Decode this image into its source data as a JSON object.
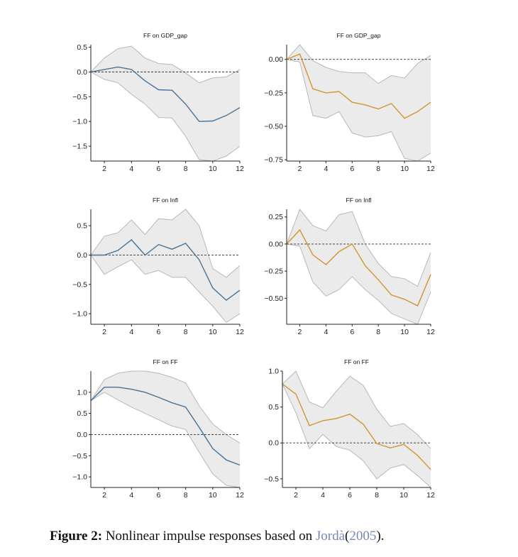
{
  "caption": {
    "label": "Figure 2:",
    "text": "Nonlinear impulse responses based on",
    "author": "Jordà",
    "open_paren": "(",
    "year": "2005",
    "close": ")."
  },
  "colors": {
    "blue": "#4a7396",
    "orange": "#d1962f",
    "band": "#ebebeb",
    "band_edge": "#b8b8b8",
    "axis": "#222222"
  },
  "chart_data": [
    {
      "id": "p1",
      "type": "line",
      "title": "FF on GDP_gap",
      "color": "blue",
      "xlim": [
        1,
        12
      ],
      "ylim": [
        -1.8,
        0.55
      ],
      "xticks": [
        2,
        4,
        6,
        8,
        10,
        12
      ],
      "xtick_labels": [
        "2",
        "4",
        "6",
        "8",
        "10",
        "12"
      ],
      "yticks": [
        0.5,
        0.0,
        -0.5,
        -1.0,
        -1.5
      ],
      "ytick_labels": [
        "0.5",
        "0.0",
        "−0.5",
        "−1.0",
        "−1.5"
      ],
      "x": [
        1,
        2,
        3,
        4,
        5,
        6,
        7,
        8,
        9,
        10,
        11,
        12
      ],
      "irf": [
        0.0,
        0.05,
        0.1,
        0.05,
        -0.18,
        -0.36,
        -0.37,
        -0.65,
        -1.0,
        -0.99,
        -0.88,
        -0.72
      ],
      "lower": [
        0.0,
        -0.15,
        -0.22,
        -0.45,
        -0.65,
        -0.92,
        -0.93,
        -1.3,
        -1.77,
        -1.9,
        -1.7,
        -1.5
      ],
      "upper": [
        0.0,
        0.28,
        0.47,
        0.52,
        0.28,
        0.17,
        0.15,
        -0.02,
        -0.22,
        -0.12,
        -0.1,
        0.05
      ]
    },
    {
      "id": "p2",
      "type": "line",
      "title": "FF on GDP_gap",
      "color": "orange",
      "xlim": [
        1,
        12
      ],
      "ylim": [
        -0.76,
        0.11
      ],
      "xticks": [
        2,
        4,
        6,
        8,
        10,
        12
      ],
      "xtick_labels": [
        "2",
        "4",
        "6",
        "8",
        "10",
        "12"
      ],
      "yticks": [
        0.0,
        -0.25,
        -0.5,
        -0.75
      ],
      "ytick_labels": [
        "0.00",
        "−0.25",
        "−0.50",
        "−0.75"
      ],
      "x": [
        1,
        2,
        3,
        4,
        5,
        6,
        7,
        8,
        9,
        10,
        11,
        12
      ],
      "irf": [
        0.0,
        0.04,
        -0.22,
        -0.25,
        -0.24,
        -0.32,
        -0.34,
        -0.37,
        -0.33,
        -0.44,
        -0.39,
        -0.32
      ],
      "lower": [
        0.0,
        -0.02,
        -0.42,
        -0.44,
        -0.39,
        -0.55,
        -0.58,
        -0.57,
        -0.54,
        -0.74,
        -0.77,
        -0.7
      ],
      "upper": [
        0.0,
        0.11,
        -0.01,
        -0.06,
        -0.09,
        -0.1,
        -0.1,
        -0.18,
        -0.12,
        -0.14,
        -0.03,
        0.03
      ]
    },
    {
      "id": "p3",
      "type": "line",
      "title": "FF on Infl",
      "color": "blue",
      "xlim": [
        1,
        12
      ],
      "ylim": [
        -1.18,
        0.78
      ],
      "xticks": [
        2,
        4,
        6,
        8,
        10,
        12
      ],
      "xtick_labels": [
        "2",
        "4",
        "6",
        "8",
        "10",
        "12"
      ],
      "yticks": [
        0.5,
        0.0,
        -0.5,
        -1.0
      ],
      "ytick_labels": [
        "0.5",
        "0.0",
        "−0.5",
        "−1.0"
      ],
      "x": [
        1,
        2,
        3,
        4,
        5,
        6,
        7,
        8,
        9,
        10,
        11,
        12
      ],
      "irf": [
        0.0,
        0.0,
        0.08,
        0.26,
        0.0,
        0.18,
        0.1,
        0.2,
        -0.08,
        -0.56,
        -0.77,
        -0.6
      ],
      "lower": [
        0.0,
        -0.33,
        -0.2,
        -0.08,
        -0.33,
        -0.26,
        -0.38,
        -0.38,
        -0.63,
        -0.87,
        -1.15,
        -1.0
      ],
      "upper": [
        0.0,
        0.32,
        0.38,
        0.6,
        0.35,
        0.62,
        0.6,
        0.78,
        0.5,
        -0.23,
        -0.38,
        -0.18
      ]
    },
    {
      "id": "p4",
      "type": "line",
      "title": "FF on Infl",
      "color": "orange",
      "xlim": [
        1,
        12
      ],
      "ylim": [
        -0.74,
        0.32
      ],
      "xticks": [
        2,
        4,
        6,
        8,
        10,
        12
      ],
      "xtick_labels": [
        "2",
        "4",
        "6",
        "8",
        "10",
        "12"
      ],
      "yticks": [
        0.25,
        0.0,
        -0.25,
        -0.5
      ],
      "ytick_labels": [
        "0.25",
        "0.00",
        "−0.25",
        "−0.50"
      ],
      "x": [
        1,
        2,
        3,
        4,
        5,
        6,
        7,
        8,
        9,
        10,
        11,
        12
      ],
      "irf": [
        0.0,
        0.13,
        -0.1,
        -0.19,
        -0.07,
        0.0,
        -0.2,
        -0.33,
        -0.47,
        -0.51,
        -0.57,
        -0.28
      ],
      "lower": [
        0.0,
        -0.02,
        -0.35,
        -0.48,
        -0.42,
        -0.3,
        -0.42,
        -0.52,
        -0.64,
        -0.69,
        -0.74,
        -0.44
      ],
      "upper": [
        0.0,
        0.32,
        0.17,
        0.12,
        0.27,
        0.3,
        0.0,
        -0.18,
        -0.3,
        -0.32,
        -0.39,
        -0.08
      ]
    },
    {
      "id": "p5",
      "type": "line",
      "title": "FF on FF",
      "color": "blue",
      "xlim": [
        1,
        12
      ],
      "ylim": [
        -1.25,
        1.5
      ],
      "xticks": [
        2,
        4,
        6,
        8,
        10,
        12
      ],
      "xtick_labels": [
        "2",
        "4",
        "6",
        "8",
        "10",
        "12"
      ],
      "yticks": [
        1.0,
        0.5,
        0.0,
        -0.5,
        -1.0
      ],
      "ytick_labels": [
        "1.0",
        "0.5",
        "0.0",
        "−0.5",
        "−1.0"
      ],
      "x": [
        1,
        2,
        3,
        4,
        5,
        6,
        7,
        8,
        9,
        10,
        11,
        12
      ],
      "irf": [
        0.8,
        1.12,
        1.12,
        1.07,
        1.0,
        0.88,
        0.75,
        0.65,
        0.17,
        -0.33,
        -0.6,
        -0.72
      ],
      "lower": [
        0.8,
        1.0,
        0.82,
        0.65,
        0.5,
        0.35,
        0.2,
        0.12,
        -0.42,
        -0.93,
        -1.2,
        -1.25
      ],
      "upper": [
        0.8,
        1.3,
        1.45,
        1.5,
        1.5,
        1.45,
        1.35,
        1.22,
        0.68,
        0.25,
        0.0,
        -0.2
      ]
    },
    {
      "id": "p6",
      "type": "line",
      "title": "FF on FF",
      "color": "orange",
      "xlim": [
        1,
        12
      ],
      "ylim": [
        -0.62,
        1.0
      ],
      "xticks": [
        2,
        4,
        6,
        8,
        10,
        12
      ],
      "xtick_labels": [
        "2",
        "4",
        "6",
        "8",
        "10",
        "12"
      ],
      "yticks": [
        1.0,
        0.5,
        0.0,
        -0.5
      ],
      "ytick_labels": [
        "1.0",
        "0.5",
        "0.0",
        "−0.5"
      ],
      "x": [
        1,
        2,
        3,
        4,
        5,
        6,
        7,
        8,
        9,
        10,
        11,
        12
      ],
      "irf": [
        0.82,
        0.68,
        0.24,
        0.31,
        0.34,
        0.4,
        0.26,
        -0.01,
        -0.07,
        -0.02,
        -0.17,
        -0.37
      ],
      "lower": [
        0.82,
        0.42,
        -0.08,
        0.12,
        -0.05,
        -0.1,
        -0.25,
        -0.5,
        -0.35,
        -0.3,
        -0.45,
        -0.62
      ],
      "upper": [
        0.82,
        1.0,
        0.57,
        0.49,
        0.72,
        0.93,
        0.8,
        0.47,
        0.23,
        0.27,
        0.12,
        -0.08
      ]
    }
  ]
}
